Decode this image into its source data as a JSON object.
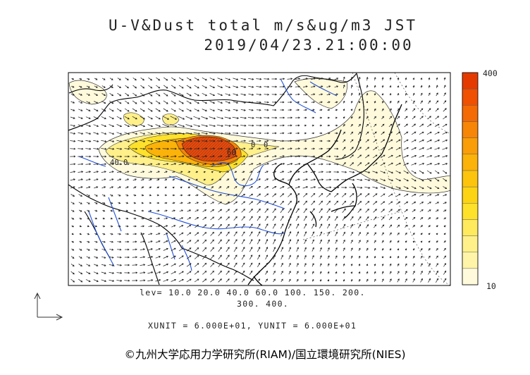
{
  "title": {
    "line1": "U-V&Dust total m/s&ug/m3 JST",
    "line2": "2019/04/23.21:00:00"
  },
  "colorbar": {
    "max_label": "400",
    "min_label": "10",
    "colors": [
      "#fffadc",
      "#fff4a8",
      "#fff08a",
      "#ffea5e",
      "#fee12a",
      "#fdd414",
      "#fcc40c",
      "#fbb209",
      "#f99d08",
      "#f78506",
      "#f46a04",
      "#ef5002",
      "#e43a00"
    ]
  },
  "contour_levels": {
    "line1": "lev= 10.0 20.0 40.0 60.0 100. 150. 200.",
    "line2": "300. 400."
  },
  "map_labels": {
    "west_contour": "40.0",
    "mid_contour1": "60",
    "mid_contour2": "0",
    "mid_contour3": "0"
  },
  "units": "XUNIT = 6.000E+01, YUNIT = 6.000E+01",
  "credit": "©九州大学応用力学研究所(RIAM)/国立環境研究所(NIES)",
  "colors": {
    "coast": "#000000",
    "river": "#1f4fd8",
    "vector": "#222222",
    "high_dust": "#e64a10"
  }
}
